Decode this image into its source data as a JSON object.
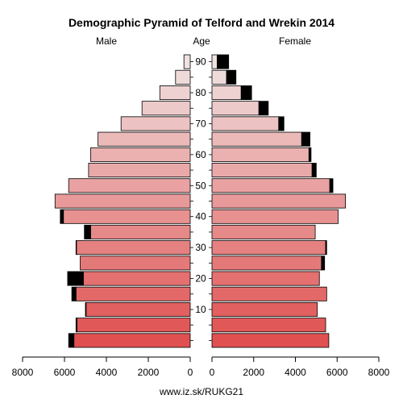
{
  "chart_data": {
    "type": "bar",
    "title": "Demographic Pyramid of Telford and Wrekin 2014",
    "left_label": "Male",
    "center_label": "Age",
    "right_label": "Female",
    "footer": "www.iz.sk/RUKG21",
    "xlim": [
      0,
      8000
    ],
    "x_ticks": [
      0,
      2000,
      4000,
      6000,
      8000
    ],
    "x_tick_labels": [
      "0",
      "2000",
      "4000",
      "6000",
      "8000"
    ],
    "age_ticks": [
      10,
      20,
      30,
      40,
      50,
      60,
      70,
      80,
      90
    ],
    "age_groups": [
      "0-4",
      "5-9",
      "10-14",
      "15-19",
      "20-24",
      "25-29",
      "30-34",
      "35-39",
      "40-44",
      "45-49",
      "50-54",
      "55-59",
      "60-64",
      "65-69",
      "70-74",
      "75-79",
      "80-84",
      "85-89",
      "90+"
    ],
    "series": [
      {
        "name": "Male",
        "values": [
          5800,
          5450,
          5000,
          5650,
          5850,
          5250,
          5450,
          5050,
          6200,
          6450,
          5800,
          4850,
          4750,
          4400,
          3300,
          2300,
          1450,
          700,
          300
        ],
        "excess": [
          250,
          50,
          30,
          200,
          750,
          0,
          20,
          300,
          150,
          0,
          0,
          0,
          0,
          0,
          0,
          0,
          0,
          0,
          0
        ]
      },
      {
        "name": "Female",
        "values": [
          5600,
          5450,
          5050,
          5500,
          5150,
          5400,
          5500,
          4950,
          6050,
          6400,
          5800,
          5000,
          4750,
          4700,
          3450,
          2700,
          1900,
          1150,
          800
        ],
        "excess": [
          0,
          0,
          0,
          0,
          0,
          150,
          50,
          0,
          0,
          0,
          150,
          200,
          100,
          400,
          250,
          450,
          500,
          450,
          550
        ]
      }
    ],
    "colors": {
      "bar_base": "#e05050",
      "bar_top": "#f0e2e2",
      "excess": "#000000",
      "outline": "#000000"
    }
  }
}
